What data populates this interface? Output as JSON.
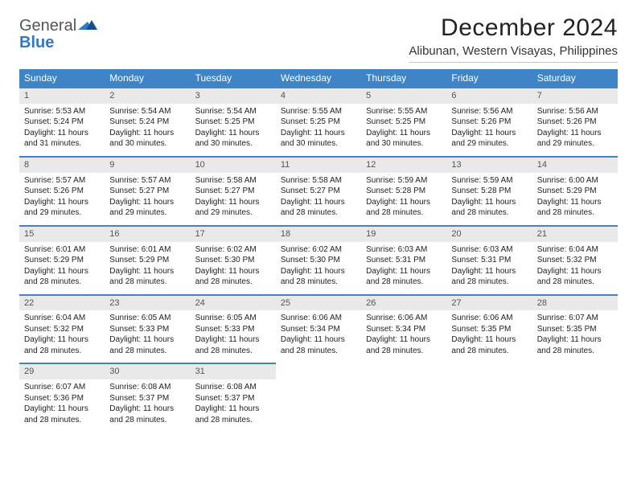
{
  "logo": {
    "word1": "General",
    "word2": "Blue"
  },
  "title": "December 2024",
  "location": "Alibunan, Western Visayas, Philippines",
  "colors": {
    "header_bg": "#3e84c6",
    "header_text": "#ffffff",
    "daynum_bg": "#e9e9e9",
    "daynum_border": "#3e84c6",
    "logo_gray": "#555555",
    "logo_blue": "#2f7ac0",
    "body_text": "#222222",
    "page_bg": "#ffffff"
  },
  "day_names": [
    "Sunday",
    "Monday",
    "Tuesday",
    "Wednesday",
    "Thursday",
    "Friday",
    "Saturday"
  ],
  "days": [
    {
      "n": 1,
      "sunrise": "Sunrise: 5:53 AM",
      "sunset": "Sunset: 5:24 PM",
      "day1": "Daylight: 11 hours",
      "day2": "and 31 minutes."
    },
    {
      "n": 2,
      "sunrise": "Sunrise: 5:54 AM",
      "sunset": "Sunset: 5:24 PM",
      "day1": "Daylight: 11 hours",
      "day2": "and 30 minutes."
    },
    {
      "n": 3,
      "sunrise": "Sunrise: 5:54 AM",
      "sunset": "Sunset: 5:25 PM",
      "day1": "Daylight: 11 hours",
      "day2": "and 30 minutes."
    },
    {
      "n": 4,
      "sunrise": "Sunrise: 5:55 AM",
      "sunset": "Sunset: 5:25 PM",
      "day1": "Daylight: 11 hours",
      "day2": "and 30 minutes."
    },
    {
      "n": 5,
      "sunrise": "Sunrise: 5:55 AM",
      "sunset": "Sunset: 5:25 PM",
      "day1": "Daylight: 11 hours",
      "day2": "and 30 minutes."
    },
    {
      "n": 6,
      "sunrise": "Sunrise: 5:56 AM",
      "sunset": "Sunset: 5:26 PM",
      "day1": "Daylight: 11 hours",
      "day2": "and 29 minutes."
    },
    {
      "n": 7,
      "sunrise": "Sunrise: 5:56 AM",
      "sunset": "Sunset: 5:26 PM",
      "day1": "Daylight: 11 hours",
      "day2": "and 29 minutes."
    },
    {
      "n": 8,
      "sunrise": "Sunrise: 5:57 AM",
      "sunset": "Sunset: 5:26 PM",
      "day1": "Daylight: 11 hours",
      "day2": "and 29 minutes."
    },
    {
      "n": 9,
      "sunrise": "Sunrise: 5:57 AM",
      "sunset": "Sunset: 5:27 PM",
      "day1": "Daylight: 11 hours",
      "day2": "and 29 minutes."
    },
    {
      "n": 10,
      "sunrise": "Sunrise: 5:58 AM",
      "sunset": "Sunset: 5:27 PM",
      "day1": "Daylight: 11 hours",
      "day2": "and 29 minutes."
    },
    {
      "n": 11,
      "sunrise": "Sunrise: 5:58 AM",
      "sunset": "Sunset: 5:27 PM",
      "day1": "Daylight: 11 hours",
      "day2": "and 28 minutes."
    },
    {
      "n": 12,
      "sunrise": "Sunrise: 5:59 AM",
      "sunset": "Sunset: 5:28 PM",
      "day1": "Daylight: 11 hours",
      "day2": "and 28 minutes."
    },
    {
      "n": 13,
      "sunrise": "Sunrise: 5:59 AM",
      "sunset": "Sunset: 5:28 PM",
      "day1": "Daylight: 11 hours",
      "day2": "and 28 minutes."
    },
    {
      "n": 14,
      "sunrise": "Sunrise: 6:00 AM",
      "sunset": "Sunset: 5:29 PM",
      "day1": "Daylight: 11 hours",
      "day2": "and 28 minutes."
    },
    {
      "n": 15,
      "sunrise": "Sunrise: 6:01 AM",
      "sunset": "Sunset: 5:29 PM",
      "day1": "Daylight: 11 hours",
      "day2": "and 28 minutes."
    },
    {
      "n": 16,
      "sunrise": "Sunrise: 6:01 AM",
      "sunset": "Sunset: 5:29 PM",
      "day1": "Daylight: 11 hours",
      "day2": "and 28 minutes."
    },
    {
      "n": 17,
      "sunrise": "Sunrise: 6:02 AM",
      "sunset": "Sunset: 5:30 PM",
      "day1": "Daylight: 11 hours",
      "day2": "and 28 minutes."
    },
    {
      "n": 18,
      "sunrise": "Sunrise: 6:02 AM",
      "sunset": "Sunset: 5:30 PM",
      "day1": "Daylight: 11 hours",
      "day2": "and 28 minutes."
    },
    {
      "n": 19,
      "sunrise": "Sunrise: 6:03 AM",
      "sunset": "Sunset: 5:31 PM",
      "day1": "Daylight: 11 hours",
      "day2": "and 28 minutes."
    },
    {
      "n": 20,
      "sunrise": "Sunrise: 6:03 AM",
      "sunset": "Sunset: 5:31 PM",
      "day1": "Daylight: 11 hours",
      "day2": "and 28 minutes."
    },
    {
      "n": 21,
      "sunrise": "Sunrise: 6:04 AM",
      "sunset": "Sunset: 5:32 PM",
      "day1": "Daylight: 11 hours",
      "day2": "and 28 minutes."
    },
    {
      "n": 22,
      "sunrise": "Sunrise: 6:04 AM",
      "sunset": "Sunset: 5:32 PM",
      "day1": "Daylight: 11 hours",
      "day2": "and 28 minutes."
    },
    {
      "n": 23,
      "sunrise": "Sunrise: 6:05 AM",
      "sunset": "Sunset: 5:33 PM",
      "day1": "Daylight: 11 hours",
      "day2": "and 28 minutes."
    },
    {
      "n": 24,
      "sunrise": "Sunrise: 6:05 AM",
      "sunset": "Sunset: 5:33 PM",
      "day1": "Daylight: 11 hours",
      "day2": "and 28 minutes."
    },
    {
      "n": 25,
      "sunrise": "Sunrise: 6:06 AM",
      "sunset": "Sunset: 5:34 PM",
      "day1": "Daylight: 11 hours",
      "day2": "and 28 minutes."
    },
    {
      "n": 26,
      "sunrise": "Sunrise: 6:06 AM",
      "sunset": "Sunset: 5:34 PM",
      "day1": "Daylight: 11 hours",
      "day2": "and 28 minutes."
    },
    {
      "n": 27,
      "sunrise": "Sunrise: 6:06 AM",
      "sunset": "Sunset: 5:35 PM",
      "day1": "Daylight: 11 hours",
      "day2": "and 28 minutes."
    },
    {
      "n": 28,
      "sunrise": "Sunrise: 6:07 AM",
      "sunset": "Sunset: 5:35 PM",
      "day1": "Daylight: 11 hours",
      "day2": "and 28 minutes."
    },
    {
      "n": 29,
      "sunrise": "Sunrise: 6:07 AM",
      "sunset": "Sunset: 5:36 PM",
      "day1": "Daylight: 11 hours",
      "day2": "and 28 minutes."
    },
    {
      "n": 30,
      "sunrise": "Sunrise: 6:08 AM",
      "sunset": "Sunset: 5:37 PM",
      "day1": "Daylight: 11 hours",
      "day2": "and 28 minutes."
    },
    {
      "n": 31,
      "sunrise": "Sunrise: 6:08 AM",
      "sunset": "Sunset: 5:37 PM",
      "day1": "Daylight: 11 hours",
      "day2": "and 28 minutes."
    }
  ]
}
